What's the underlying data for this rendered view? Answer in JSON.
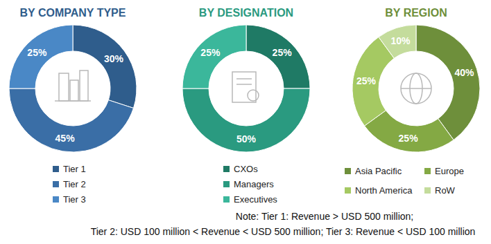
{
  "chart_data": [
    {
      "type": "donut",
      "title": "BY COMPANY TYPE",
      "categories": [
        "Tier 1",
        "Tier 2",
        "Tier 3"
      ],
      "values": [
        30,
        45,
        25
      ],
      "value_labels": [
        "30%",
        "45%",
        "25%"
      ],
      "colors": [
        "#2f5d8c",
        "#3a6ea6",
        "#4a88c6"
      ],
      "data_labels": true,
      "legend": "bottom"
    },
    {
      "type": "donut",
      "title": "BY DESIGNATION",
      "categories": [
        "CXOs",
        "Managers",
        "Executives"
      ],
      "values": [
        25,
        50,
        25
      ],
      "value_labels": [
        "25%",
        "50%",
        "25%"
      ],
      "colors": [
        "#1f7a65",
        "#2a9a80",
        "#3bb79b"
      ],
      "data_labels": true,
      "legend": "bottom"
    },
    {
      "type": "donut",
      "title": "BY REGION",
      "categories": [
        "Asia Pacific",
        "Europe",
        "North America",
        "RoW"
      ],
      "values": [
        40,
        25,
        25,
        10
      ],
      "value_labels": [
        "40%",
        "25%",
        "25%",
        "10%"
      ],
      "colors": [
        "#6e8f3b",
        "#84a944",
        "#a5c962",
        "#c4dc9c"
      ],
      "data_labels": true,
      "legend": "bottom"
    }
  ],
  "notes": [
    "Note: Tier 1: Revenue > USD 500 million;",
    "Tier 2: USD 100 million < Revenue < USD 500 million; Tier 3: Revenue < USD 100 million"
  ]
}
